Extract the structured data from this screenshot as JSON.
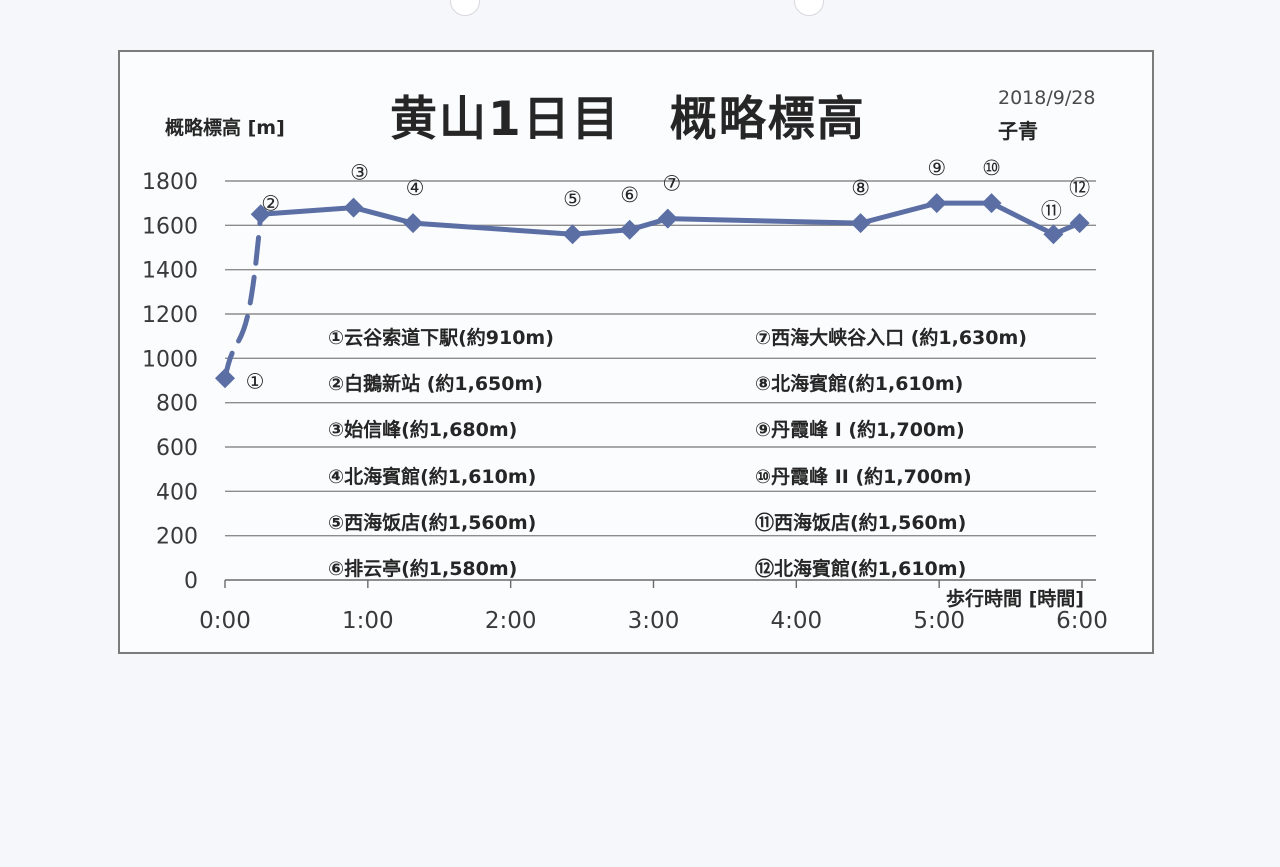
{
  "page": {
    "background": "#f6f7fb"
  },
  "header": {
    "title": "黄山1日目　概略標高",
    "date": "2018/9/28",
    "author": "子青"
  },
  "chart_data": {
    "type": "line",
    "title": "黄山1日目　概略標高",
    "ylabel": "概略標高 [m]",
    "xlabel": "歩行時間 [時間]",
    "ylim": [
      0,
      1800
    ],
    "yticks": [
      0,
      200,
      400,
      600,
      800,
      1000,
      1200,
      1400,
      1600,
      1800
    ],
    "ytick_labels": [
      "0",
      "200",
      "400",
      "600",
      "800",
      "1000",
      "1200",
      "1400",
      "1600",
      "1800"
    ],
    "xlim_minutes": [
      0,
      360
    ],
    "xticks_minutes": [
      0,
      60,
      120,
      180,
      240,
      300,
      360
    ],
    "xtick_labels": [
      "0:00",
      "1:00",
      "2:00",
      "3:00",
      "4:00",
      "5:00",
      "6:00"
    ],
    "grid": "horizontal",
    "line_color": "#5b6fa5",
    "points": [
      {
        "label": "①",
        "x": "0:00",
        "minutes": 0,
        "y": 910
      },
      {
        "label": "②",
        "x": "0:15",
        "minutes": 15,
        "y": 1650
      },
      {
        "label": "③",
        "x": "0:54",
        "minutes": 54,
        "y": 1680
      },
      {
        "label": "④",
        "x": "1:19",
        "minutes": 79,
        "y": 1610
      },
      {
        "label": "⑤",
        "x": "2:26",
        "minutes": 146,
        "y": 1560
      },
      {
        "label": "⑥",
        "x": "2:50",
        "minutes": 170,
        "y": 1580
      },
      {
        "label": "⑦",
        "x": "3:06",
        "minutes": 186,
        "y": 1630
      },
      {
        "label": "⑧",
        "x": "4:27",
        "minutes": 267,
        "y": 1610
      },
      {
        "label": "⑨",
        "x": "4:59",
        "minutes": 299,
        "y": 1700
      },
      {
        "label": "⑩",
        "x": "5:22",
        "minutes": 322,
        "y": 1700
      },
      {
        "label": "⑪",
        "x": "5:48",
        "minutes": 348,
        "y": 1560
      },
      {
        "label": "⑫",
        "x": "5:59",
        "minutes": 359,
        "y": 1610
      }
    ],
    "dashed_segment": "①-②",
    "legend": [
      "①云谷索道下駅(約910m)",
      "②白鵝新站 (約1,650m)",
      "③始信峰(約1,680m)",
      "④北海賓館(約1,610m)",
      "⑤西海饭店(約1,560m)",
      "⑥排云亭(約1,580m)",
      "⑦西海大峡谷入口 (約1,630m)",
      "⑧北海賓館(約1,610m)",
      "⑨丹霞峰 I (約1,700m)",
      "⑩丹霞峰 II (約1,700m)",
      "⑪西海饭店(約1,560m)",
      "⑫北海賓館(約1,610m)"
    ]
  }
}
